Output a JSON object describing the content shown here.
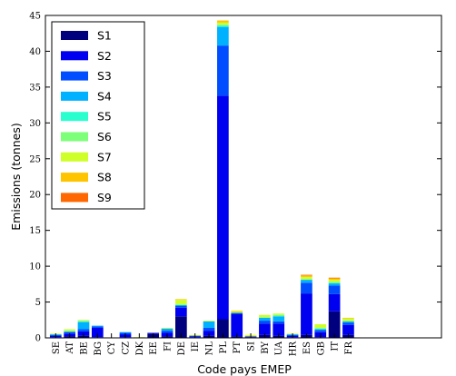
{
  "chart_data": {
    "type": "bar",
    "stacked": true,
    "title": "",
    "xlabel": "Code pays EMEP",
    "ylabel": "Emissions (tonnes)",
    "ylim": [
      0,
      45
    ],
    "yticks": [
      0,
      5,
      10,
      15,
      20,
      25,
      30,
      35,
      40,
      45
    ],
    "grid": false,
    "legend_position": "top-left",
    "categories": [
      "SE",
      "AT",
      "BE",
      "BG",
      "CY",
      "CZ",
      "DK",
      "EE",
      "FI",
      "DE",
      "IE",
      "NL",
      "PL",
      "PT",
      "SI",
      "BY",
      "UA",
      "HR",
      "ES",
      "GB",
      "IT",
      "FR"
    ],
    "series": [
      {
        "name": "S1",
        "color": "#00007f",
        "values": [
          0.1,
          0.2,
          0.3,
          0.1,
          0.0,
          0.1,
          0.0,
          0.6,
          0.2,
          3.0,
          0.1,
          0.3,
          2.6,
          0.2,
          0.1,
          0.4,
          0.3,
          0.1,
          0.4,
          0.1,
          3.7,
          0.4
        ]
      },
      {
        "name": "S2",
        "color": "#0000f1",
        "values": [
          0.2,
          0.4,
          0.6,
          1.3,
          0.0,
          0.4,
          0.0,
          0.1,
          0.5,
          1.2,
          0.1,
          0.7,
          31.2,
          3.1,
          0.1,
          1.6,
          1.7,
          0.2,
          5.8,
          0.7,
          2.4,
          1.4
        ]
      },
      {
        "name": "S3",
        "color": "#004dff",
        "values": [
          0.1,
          0.2,
          0.3,
          0.2,
          0.0,
          0.2,
          0.0,
          0.0,
          0.3,
          0.3,
          0.1,
          0.4,
          7.0,
          0.2,
          0.0,
          0.4,
          0.3,
          0.1,
          1.5,
          0.3,
          1.2,
          0.3
        ]
      },
      {
        "name": "S4",
        "color": "#00b1ff",
        "values": [
          0.1,
          0.1,
          1.0,
          0.1,
          0.0,
          0.1,
          0.0,
          0.0,
          0.3,
          0.0,
          0.0,
          0.9,
          2.6,
          0.0,
          0.0,
          0.4,
          0.7,
          0.1,
          0.4,
          0.1,
          0.3,
          0.2
        ]
      },
      {
        "name": "S5",
        "color": "#29ffce",
        "values": [
          0.0,
          0.0,
          0.1,
          0.0,
          0.0,
          0.0,
          0.0,
          0.0,
          0.0,
          0.1,
          0.0,
          0.0,
          0.2,
          0.0,
          0.0,
          0.0,
          0.1,
          0.0,
          0.0,
          0.1,
          0.1,
          0.0
        ]
      },
      {
        "name": "S6",
        "color": "#7dff7a",
        "values": [
          0.0,
          0.1,
          0.1,
          0.0,
          0.0,
          0.0,
          0.0,
          0.0,
          0.0,
          0.1,
          0.0,
          0.0,
          0.1,
          0.0,
          0.0,
          0.1,
          0.1,
          0.0,
          0.1,
          0.1,
          0.1,
          0.1
        ]
      },
      {
        "name": "S7",
        "color": "#ceff29",
        "values": [
          0.1,
          0.2,
          0.1,
          0.0,
          0.0,
          0.0,
          0.1,
          0.0,
          0.1,
          0.6,
          0.1,
          0.1,
          0.3,
          0.2,
          0.2,
          0.3,
          0.2,
          0.1,
          0.3,
          0.5,
          0.3,
          0.3
        ]
      },
      {
        "name": "S8",
        "color": "#ffc400",
        "values": [
          0.0,
          0.0,
          0.0,
          0.0,
          0.0,
          0.0,
          0.0,
          0.0,
          0.0,
          0.1,
          0.0,
          0.0,
          0.3,
          0.1,
          0.0,
          0.0,
          0.0,
          0.0,
          0.2,
          0.0,
          0.2,
          0.1
        ]
      },
      {
        "name": "S9",
        "color": "#ff6800",
        "values": [
          0.0,
          0.0,
          0.0,
          0.0,
          0.0,
          0.0,
          0.0,
          0.0,
          0.0,
          0.0,
          0.0,
          0.0,
          0.0,
          0.0,
          0.0,
          0.0,
          0.0,
          0.0,
          0.1,
          0.0,
          0.1,
          0.0
        ]
      }
    ]
  }
}
